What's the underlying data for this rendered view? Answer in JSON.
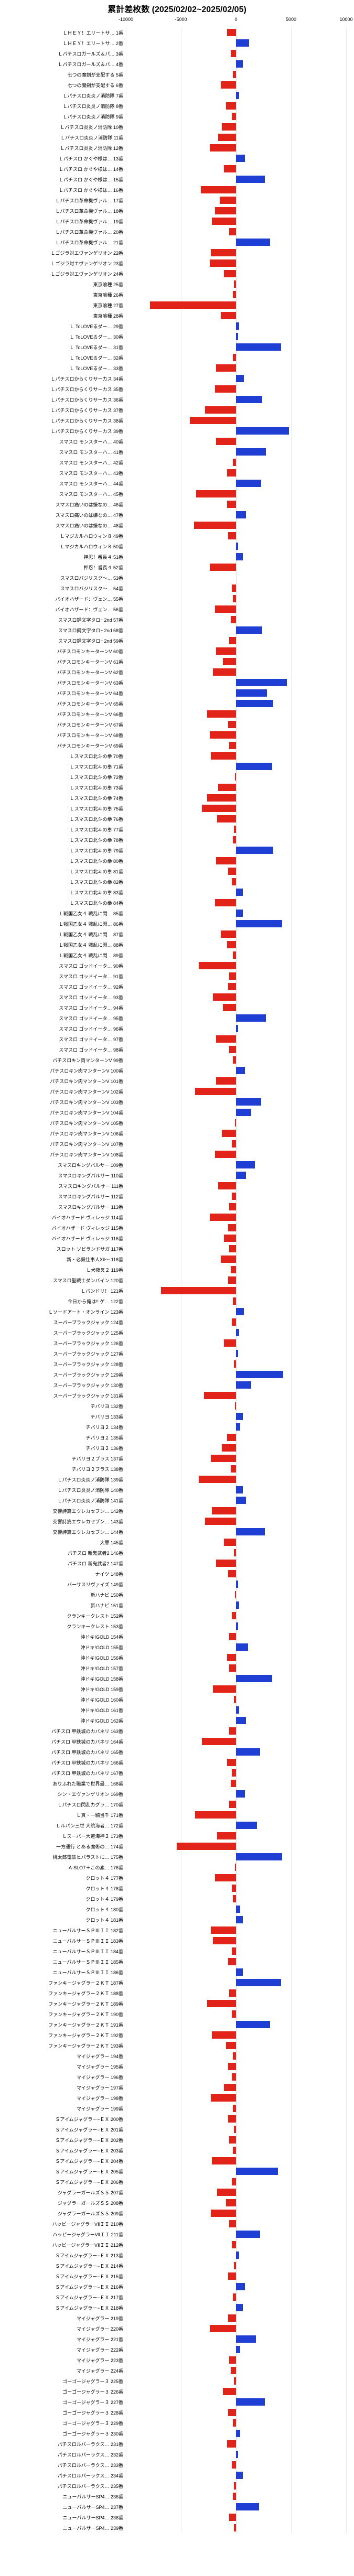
{
  "title": "累計差枚数 (2025/02/02~2025/02/05)",
  "axis": {
    "min": -10000,
    "max": 10000,
    "ticks": [
      -10000,
      -5000,
      0,
      5000,
      10000
    ]
  },
  "colors": {
    "positive": "#1f3fd4",
    "negative": "#e2231a",
    "background": "#ffffff",
    "grid": "rgba(0,0,0,0.08)",
    "zero": "rgba(0,0,0,0.15)"
  },
  "rows": [
    {
      "label": "ＬＨＥＹ！エリートサ… 1番",
      "value": -800
    },
    {
      "label": "ＬＨＥＹ！エリートサ… 2番",
      "value": 1200
    },
    {
      "label": "Ｌパチスロガールズ＆パ… 3番",
      "value": -500
    },
    {
      "label": "Ｌパチスロガールズ＆パ… 4番",
      "value": 600
    },
    {
      "label": "七つの魔剣が支配する 5番",
      "value": -300
    },
    {
      "label": "七つの魔剣が支配する 6番",
      "value": -1400
    },
    {
      "label": "Ｌパチスロ炎炎ノ消防隊 7番",
      "value": 300
    },
    {
      "label": "Ｌパチスロ炎炎ノ消防隊 8番",
      "value": -900
    },
    {
      "label": "Ｌパチスロ炎炎ノ消防隊 9番",
      "value": -400
    },
    {
      "label": "Ｌパチスロ炎炎ノ消防隊 10番",
      "value": -1300
    },
    {
      "label": "Ｌパチスロ炎炎ノ消防隊 11番",
      "value": -1600
    },
    {
      "label": "Ｌパチスロ炎炎ノ消防隊 12番",
      "value": -2400
    },
    {
      "label": "Ｌパチスロ かぐや様は… 13番",
      "value": 800
    },
    {
      "label": "Ｌパチスロ かぐや様は… 14番",
      "value": -1100
    },
    {
      "label": "Ｌパチスロ かぐや様は… 15番",
      "value": 2600
    },
    {
      "label": "Ｌパチスロ かぐや様は… 16番",
      "value": -3200
    },
    {
      "label": "Ｌパチスロ革命機ヴァル… 17番",
      "value": -1500
    },
    {
      "label": "Ｌパチスロ革命機ヴァル… 18番",
      "value": -1900
    },
    {
      "label": "Ｌパチスロ革命機ヴァル… 19番",
      "value": -2200
    },
    {
      "label": "Ｌパチスロ革命機ヴァル… 20番",
      "value": -600
    },
    {
      "label": "Ｌパチスロ革命機ヴァル… 21番",
      "value": 3100
    },
    {
      "label": "Ｌゴジラ対エヴァンゲリオン 22番",
      "value": -2300
    },
    {
      "label": "Ｌゴジラ対エヴァンゲリオン 23番",
      "value": -2400
    },
    {
      "label": "Ｌゴジラ対エヴァンゲリオン 24番",
      "value": -1100
    },
    {
      "label": "東京喰種 25番",
      "value": -200
    },
    {
      "label": "東京喰種 26番",
      "value": -300
    },
    {
      "label": "東京喰種 27番",
      "value": -7800
    },
    {
      "label": "東京喰種 28番",
      "value": -1400
    },
    {
      "label": "Ｌ ToLOVEるダー… 29番",
      "value": 300
    },
    {
      "label": "Ｌ ToLOVEるダー… 30番",
      "value": 200
    },
    {
      "label": "Ｌ ToLOVEるダー… 31番",
      "value": 4100
    },
    {
      "label": "Ｌ ToLOVEるダー… 32番",
      "value": -300
    },
    {
      "label": "Ｌ ToLOVEるダー… 33番",
      "value": -1800
    },
    {
      "label": "Ｌパチスロからくりサーカス 34番",
      "value": 700
    },
    {
      "label": "Ｌパチスロからくりサーカス 35番",
      "value": -1900
    },
    {
      "label": "Ｌパチスロからくりサーカス 36番",
      "value": 2400
    },
    {
      "label": "Ｌパチスロからくりサーカス 37番",
      "value": -2800
    },
    {
      "label": "Ｌパチスロからくりサーカス 38番",
      "value": -4200
    },
    {
      "label": "Ｌパチスロからくりサーカス 39番",
      "value": 4800
    },
    {
      "label": "スマスロ モンスターハ… 40番",
      "value": -1800
    },
    {
      "label": "スマスロ モンスターハ… 41番",
      "value": 2700
    },
    {
      "label": "スマスロ モンスターハ… 42番",
      "value": -300
    },
    {
      "label": "スマスロ モンスターハ… 43番",
      "value": -800
    },
    {
      "label": "スマスロ モンスターハ… 44番",
      "value": 2300
    },
    {
      "label": "スマスロ モンスターハ… 45番",
      "value": -3600
    },
    {
      "label": "スマスロ痛いのは嫌なの… 46番",
      "value": -800
    },
    {
      "label": "スマスロ痛いのは嫌なの… 47番",
      "value": 900
    },
    {
      "label": "スマスロ痛いのは嫌なの… 48番",
      "value": -3800
    },
    {
      "label": "Ｌマジカルハロウィン８ 49番",
      "value": -700
    },
    {
      "label": "Ｌマジカルハロウィン８ 50番",
      "value": 200
    },
    {
      "label": "押忍！番長４ 51番",
      "value": 600
    },
    {
      "label": "押忍！番長４ 52番",
      "value": -2400
    },
    {
      "label": "スマスロバジリスク～… 53番",
      "value": 0
    },
    {
      "label": "スマスロバジリスク～… 54番",
      "value": -400
    },
    {
      "label": "バイオハザード：ヴェン… 55番",
      "value": -300
    },
    {
      "label": "バイオハザード：ヴェン… 56番",
      "value": -1900
    },
    {
      "label": "スマスロ鋼文字タロｰ 2nd 57番",
      "value": -500
    },
    {
      "label": "スマスロ鋼文字タロｰ 2nd 58番",
      "value": 2400
    },
    {
      "label": "スマスロ鋼文字タロｰ 2nd 59番",
      "value": -600
    },
    {
      "label": "パチスロモンキーターンV 60番",
      "value": -1800
    },
    {
      "label": "パチスロモンキーターンV 61番",
      "value": -1200
    },
    {
      "label": "パチスロモンキーターンV 62番",
      "value": -2100
    },
    {
      "label": "パチスロモンキーターンV 63番",
      "value": 4600
    },
    {
      "label": "パチスロモンキーターンV 64番",
      "value": 2800
    },
    {
      "label": "パチスロモンキーターンV 65番",
      "value": 3400
    },
    {
      "label": "パチスロモンキーターンV 66番",
      "value": -2600
    },
    {
      "label": "パチスロモンキーターンV 67番",
      "value": -700
    },
    {
      "label": "パチスロモンキーターンV 68番",
      "value": -2400
    },
    {
      "label": "パチスロモンキーターンV 69番",
      "value": -600
    },
    {
      "label": "Ｌスマスロ北斗の拳 70番",
      "value": -2300
    },
    {
      "label": "Ｌスマスロ北斗の拳 71番",
      "value": 3300
    },
    {
      "label": "Ｌスマスロ北斗の拳 72番",
      "value": -100
    },
    {
      "label": "Ｌスマスロ北斗の拳 73番",
      "value": -1600
    },
    {
      "label": "Ｌスマスロ北斗の拳 74番",
      "value": -2600
    },
    {
      "label": "Ｌスマスロ北斗の拳 75番",
      "value": -3100
    },
    {
      "label": "Ｌスマスロ北斗の拳 76番",
      "value": -1700
    },
    {
      "label": "Ｌスマスロ北斗の拳 77番",
      "value": -200
    },
    {
      "label": "Ｌスマスロ北斗の拳 78番",
      "value": -300
    },
    {
      "label": "Ｌスマスロ北斗の拳 79番",
      "value": 3400
    },
    {
      "label": "Ｌスマスロ北斗の拳 80番",
      "value": -1800
    },
    {
      "label": "Ｌスマスロ北斗の拳 81番",
      "value": -700
    },
    {
      "label": "Ｌスマスロ北斗の拳 82番",
      "value": -400
    },
    {
      "label": "Ｌスマスロ北斗の拳 83番",
      "value": 600
    },
    {
      "label": "Ｌスマスロ北斗の拳 84番",
      "value": -1900
    },
    {
      "label": "Ｌ戦国乙女４ 戦乱に閃… 85番",
      "value": 600
    },
    {
      "label": "Ｌ戦国乙女４ 戦乱に閃… 86番",
      "value": 4200
    },
    {
      "label": "Ｌ戦国乙女４ 戦乱に閃… 87番",
      "value": -1400
    },
    {
      "label": "Ｌ戦国乙女４ 戦乱に閃… 88番",
      "value": -800
    },
    {
      "label": "Ｌ戦国乙女４ 戦乱に閃… 89番",
      "value": -300
    },
    {
      "label": "スマスロ ゴッドイータ… 90番",
      "value": -3400
    },
    {
      "label": "スマスロ ゴッドイータ… 91番",
      "value": -600
    },
    {
      "label": "スマスロ ゴッドイータ… 92番",
      "value": -700
    },
    {
      "label": "スマスロ ゴッドイータ… 93番",
      "value": -2100
    },
    {
      "label": "スマスロ ゴッドイータ… 94番",
      "value": -1200
    },
    {
      "label": "スマスロ ゴッドイータ… 95番",
      "value": 2700
    },
    {
      "label": "スマスロ ゴッドイータ… 96番",
      "value": 200
    },
    {
      "label": "スマスロ ゴッドイータ… 97番",
      "value": -1800
    },
    {
      "label": "スマスロ ゴッドイータ… 98番",
      "value": -600
    },
    {
      "label": "パチスロキン肉マンターンV 99番",
      "value": -300
    },
    {
      "label": "パチスロキン肉マンターンV 100番",
      "value": 800
    },
    {
      "label": "パチスロキン肉マンターンV 101番",
      "value": -1800
    },
    {
      "label": "パチスロキン肉マンターンV 102番",
      "value": -3700
    },
    {
      "label": "パチスロキン肉マンターンV 103番",
      "value": 2300
    },
    {
      "label": "パチスロキン肉マンターンV 104番",
      "value": 1400
    },
    {
      "label": "パチスロキン肉マンターンV 105番",
      "value": -100
    },
    {
      "label": "パチスロキン肉マンターンV 106番",
      "value": -1300
    },
    {
      "label": "パチスロキン肉マンターンV 107番",
      "value": -400
    },
    {
      "label": "パチスロキン肉マンターンV 108番",
      "value": -1900
    },
    {
      "label": "スマスロキングパルサー 109番",
      "value": 1700
    },
    {
      "label": "スマスロキングパルサー 110番",
      "value": 900
    },
    {
      "label": "スマスロキングパルサー 111番",
      "value": -1600
    },
    {
      "label": "スマスロキングパルサー 112番",
      "value": -400
    },
    {
      "label": "スマスロキングパルサー 113番",
      "value": -600
    },
    {
      "label": "バイオハザード ヴィレッジ 114番",
      "value": -2400
    },
    {
      "label": "バイオハザード ヴィレッジ 115番",
      "value": -700
    },
    {
      "label": "バイオハザード ヴィレッジ 116番",
      "value": -1100
    },
    {
      "label": "スロット ソビランドサガ 117番",
      "value": -600
    },
    {
      "label": "新・必殺仕事人Ⅻ～ 118番",
      "value": -1400
    },
    {
      "label": "Ｌ犬夜叉２ 119番",
      "value": -500
    },
    {
      "label": "スマスロ聖戦士ダンバイン 120番",
      "value": -700
    },
    {
      "label": "Ｌバンドリ！ 121番",
      "value": -6800
    },
    {
      "label": "今日から俺は!! ゲ… 122番",
      "value": -300
    },
    {
      "label": "Ｌソードアート・オンライン 123番",
      "value": 700
    },
    {
      "label": "スーパーブラックジャック 124番",
      "value": -400
    },
    {
      "label": "スーパーブラックジャック 125番",
      "value": 300
    },
    {
      "label": "スーパーブラックジャック 126番",
      "value": -1100
    },
    {
      "label": "スーパーブラックジャック 127番",
      "value": 200
    },
    {
      "label": "スーパーブラックジャック 128番",
      "value": -200
    },
    {
      "label": "スーパーブラックジャック 129番",
      "value": 4300
    },
    {
      "label": "スーパーブラックジャック 130番",
      "value": 1400
    },
    {
      "label": "スーパーブラックジャック 131番",
      "value": -2900
    },
    {
      "label": "チバリヨ 132番",
      "value": -100
    },
    {
      "label": "チバリヨ 133番",
      "value": 600
    },
    {
      "label": "チバリヨ２ 134番",
      "value": 400
    },
    {
      "label": "チバリヨ２ 135番",
      "value": -800
    },
    {
      "label": "チバリヨ２ 136番",
      "value": -1300
    },
    {
      "label": "チバリヨ２プラス 137番",
      "value": -2300
    },
    {
      "label": "チバリヨ２プラス 138番",
      "value": -500
    },
    {
      "label": "Ｌパチスロ炎炎ノ消防隊 139番",
      "value": -3400
    },
    {
      "label": "Ｌパチスロ炎炎ノ消防隊 140番",
      "value": 600
    },
    {
      "label": "Ｌパチスロ炎炎ノ消防隊 141番",
      "value": 900
    },
    {
      "label": "交響詩篇エウレカセブン… 142番",
      "value": -2200
    },
    {
      "label": "交響詩篇エウレカセブン… 143番",
      "value": -2800
    },
    {
      "label": "交響詩篇エウレカセブン… 144番",
      "value": 2600
    },
    {
      "label": "大罪 145番",
      "value": -1100
    },
    {
      "label": "パチスロ 新鬼武者2 146番",
      "value": -200
    },
    {
      "label": "パチスロ 新鬼武者2 147番",
      "value": -1800
    },
    {
      "label": "ナイツ 148番",
      "value": -700
    },
    {
      "label": "バーサスリヴァイズ 149番",
      "value": 200
    },
    {
      "label": "新ハナビ 150番",
      "value": -100
    },
    {
      "label": "新ハナビ 151番",
      "value": 300
    },
    {
      "label": "クランキークレスト 152番",
      "value": -400
    },
    {
      "label": "クランキークレスト 153番",
      "value": 200
    },
    {
      "label": "沖ドキ!GOLD 154番",
      "value": -600
    },
    {
      "label": "沖ドキ!GOLD 155番",
      "value": 1100
    },
    {
      "label": "沖ドキ!GOLD 156番",
      "value": -800
    },
    {
      "label": "沖ドキ!GOLD 157番",
      "value": -600
    },
    {
      "label": "沖ドキ!GOLD 158番",
      "value": 3300
    },
    {
      "label": "沖ドキ!GOLD 159番",
      "value": -2100
    },
    {
      "label": "沖ドキ!GOLD 160番",
      "value": -200
    },
    {
      "label": "沖ドキ!GOLD 161番",
      "value": 300
    },
    {
      "label": "沖ドキ!GOLD 162番",
      "value": 900
    },
    {
      "label": "パチスロ 甲鉄城のカバネリ 163番",
      "value": -600
    },
    {
      "label": "パチスロ 甲鉄城のカバネリ 164番",
      "value": -3100
    },
    {
      "label": "パチスロ 甲鉄城のカバネリ 165番",
      "value": 2200
    },
    {
      "label": "パチスロ 甲鉄城のカバネリ 166番",
      "value": -800
    },
    {
      "label": "パチスロ 甲鉄城のカバネリ 167番",
      "value": -400
    },
    {
      "label": "ありふれた職業で世界最… 168番",
      "value": -500
    },
    {
      "label": "シン・エヴァンゲリオン 169番",
      "value": 800
    },
    {
      "label": "Ｌパチスロ閃乱カグラ… 170番",
      "value": -600
    },
    {
      "label": "Ｌ真・一騎当千 171番",
      "value": -3700
    },
    {
      "label": "Ｌルパン三世 大航海者… 172番",
      "value": 1900
    },
    {
      "label": "Ｌスーパー大道海神２ 173番",
      "value": -1700
    },
    {
      "label": "一方通行 とある魔術の… 174番",
      "value": -5400
    },
    {
      "label": "桃太郎電鉄ヒバラストに… 175番",
      "value": 4200
    },
    {
      "label": "A-SLOT＋この素… 176番",
      "value": -100
    },
    {
      "label": "クロット４ 177番",
      "value": -1900
    },
    {
      "label": "クロット４ 178番",
      "value": -400
    },
    {
      "label": "クロット４ 179番",
      "value": -300
    },
    {
      "label": "クロット４ 180番",
      "value": 400
    },
    {
      "label": "クロット４ 181番",
      "value": 600
    },
    {
      "label": "ニューパルサーＳＰⅢＩＩ 182番",
      "value": -2300
    },
    {
      "label": "ニューパルサーＳＰⅢＩＩ 183番",
      "value": -2100
    },
    {
      "label": "ニューパルサーＳＰⅢＩＩ 184番",
      "value": -400
    },
    {
      "label": "ニューパルサーＳＰⅢＩＩ 185番",
      "value": -700
    },
    {
      "label": "ニューパルサーＳＰⅢＩＩ 186番",
      "value": 600
    },
    {
      "label": "ファンキージャグラー２ＫＴ 187番",
      "value": 4100
    },
    {
      "label": "ファンキージャグラー２ＫＴ 188番",
      "value": -600
    },
    {
      "label": "ファンキージャグラー２ＫＴ 189番",
      "value": -2600
    },
    {
      "label": "ファンキージャグラー２ＫＴ 190番",
      "value": -400
    },
    {
      "label": "ファンキージャグラー２ＫＴ 191番",
      "value": 3100
    },
    {
      "label": "ファンキージャグラー２ＫＴ 192番",
      "value": -2200
    },
    {
      "label": "ファンキージャグラー２ＫＴ 193番",
      "value": -900
    },
    {
      "label": "マイジャグラー 194番",
      "value": -300
    },
    {
      "label": "マイジャグラー 195番",
      "value": -700
    },
    {
      "label": "マイジャグラー 196番",
      "value": -400
    },
    {
      "label": "マイジャグラー 197番",
      "value": -1100
    },
    {
      "label": "マイジャグラー 198番",
      "value": -2300
    },
    {
      "label": "マイジャグラー 199番",
      "value": -300
    },
    {
      "label": "Ｓアイムジャグラー−ＥＸ 200番",
      "value": -700
    },
    {
      "label": "Ｓアイムジャグラー−ＥＸ 201番",
      "value": -200
    },
    {
      "label": "Ｓアイムジャグラー−ＥＸ 202番",
      "value": -600
    },
    {
      "label": "Ｓアイムジャグラー−ＥＸ 203番",
      "value": -300
    },
    {
      "label": "Ｓアイムジャグラー−ＥＸ 204番",
      "value": -2200
    },
    {
      "label": "Ｓアイムジャグラー−ＥＸ 205番",
      "value": 3800
    },
    {
      "label": "Ｓアイムジャグラー−ＥＸ 206番",
      "value": -400
    },
    {
      "label": "ジャグラーガールズＳＳ 207番",
      "value": -1700
    },
    {
      "label": "ジャグラーガールズＳＳ 208番",
      "value": -900
    },
    {
      "label": "ジャグラーガールズＳＳ 209番",
      "value": -2300
    },
    {
      "label": "ハッピージャグラーVⅡＩＩ 210番",
      "value": -600
    },
    {
      "label": "ハッピージャグラーVⅡＩＩ 211番",
      "value": 2200
    },
    {
      "label": "ハッピージャグラーVⅡＩＩ 212番",
      "value": -400
    },
    {
      "label": "Ｓアイムジャグラー−ＥＸ 213番",
      "value": 300
    },
    {
      "label": "Ｓアイムジャグラー−ＥＸ 214番",
      "value": -200
    },
    {
      "label": "Ｓアイムジャグラー−ＥＸ 215番",
      "value": -700
    },
    {
      "label": "Ｓアイムジャグラー−ＥＸ 216番",
      "value": 800
    },
    {
      "label": "Ｓアイムジャグラー−ＥＸ 217番",
      "value": -300
    },
    {
      "label": "Ｓアイムジャグラー−ＥＸ 218番",
      "value": 600
    },
    {
      "label": "マイジャグラー 219番",
      "value": -700
    },
    {
      "label": "マイジャグラー 220番",
      "value": -2400
    },
    {
      "label": "マイジャグラー 221番",
      "value": 1800
    },
    {
      "label": "マイジャグラー 222番",
      "value": 400
    },
    {
      "label": "マイジャグラー 223番",
      "value": -600
    },
    {
      "label": "マイジャグラー 224番",
      "value": -500
    },
    {
      "label": "ゴーゴージャグラー３ 225番",
      "value": -200
    },
    {
      "label": "ゴーゴージャグラー３ 226番",
      "value": -1200
    },
    {
      "label": "ゴーゴージャグラー３ 227番",
      "value": 2600
    },
    {
      "label": "ゴーゴージャグラー３ 228番",
      "value": -700
    },
    {
      "label": "ゴーゴージャグラー３ 229番",
      "value": -300
    },
    {
      "label": "ゴーゴージャグラー３ 230番",
      "value": 400
    },
    {
      "label": "パチスロルパーラクス… 231番",
      "value": -800
    },
    {
      "label": "パチスロルパーラクス… 232番",
      "value": 200
    },
    {
      "label": "パチスロルパーラクス… 233番",
      "value": -400
    },
    {
      "label": "パチスロルパーラクス… 234番",
      "value": 600
    },
    {
      "label": "パチスロルパーラクス… 235番",
      "value": -200
    },
    {
      "label": "ニューパルサーSP4… 236番",
      "value": -300
    },
    {
      "label": "ニューパルサーSP4… 237番",
      "value": 2100
    },
    {
      "label": "ニューパルサーSP4… 238番",
      "value": -600
    },
    {
      "label": "ニューパルサーSP4… 239番",
      "value": -200
    }
  ]
}
